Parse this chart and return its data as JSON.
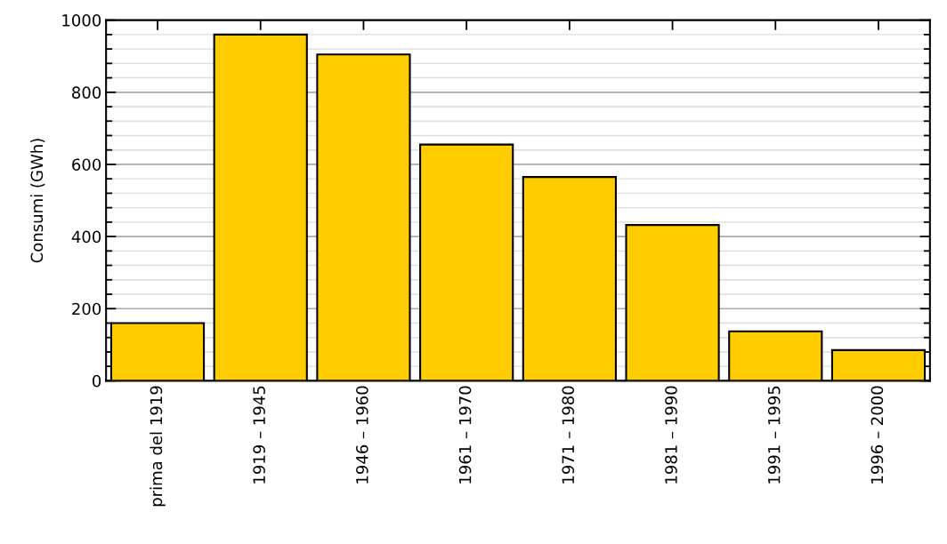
{
  "chart_data": {
    "type": "bar",
    "ylabel": "Consumi (GWh)",
    "categories": [
      "prima del 1919",
      "1919 – 1945",
      "1946 – 1960",
      "1961 – 1970",
      "1971 – 1980",
      "1981 – 1990",
      "1991 – 1995",
      "1996 – 2000"
    ],
    "values": [
      160,
      960,
      905,
      655,
      565,
      432,
      137,
      85
    ],
    "color": "#ffcc00",
    "ylim": [
      0,
      1000
    ],
    "yticks": [
      0,
      200,
      400,
      600,
      800,
      1000
    ],
    "grid": "y"
  }
}
